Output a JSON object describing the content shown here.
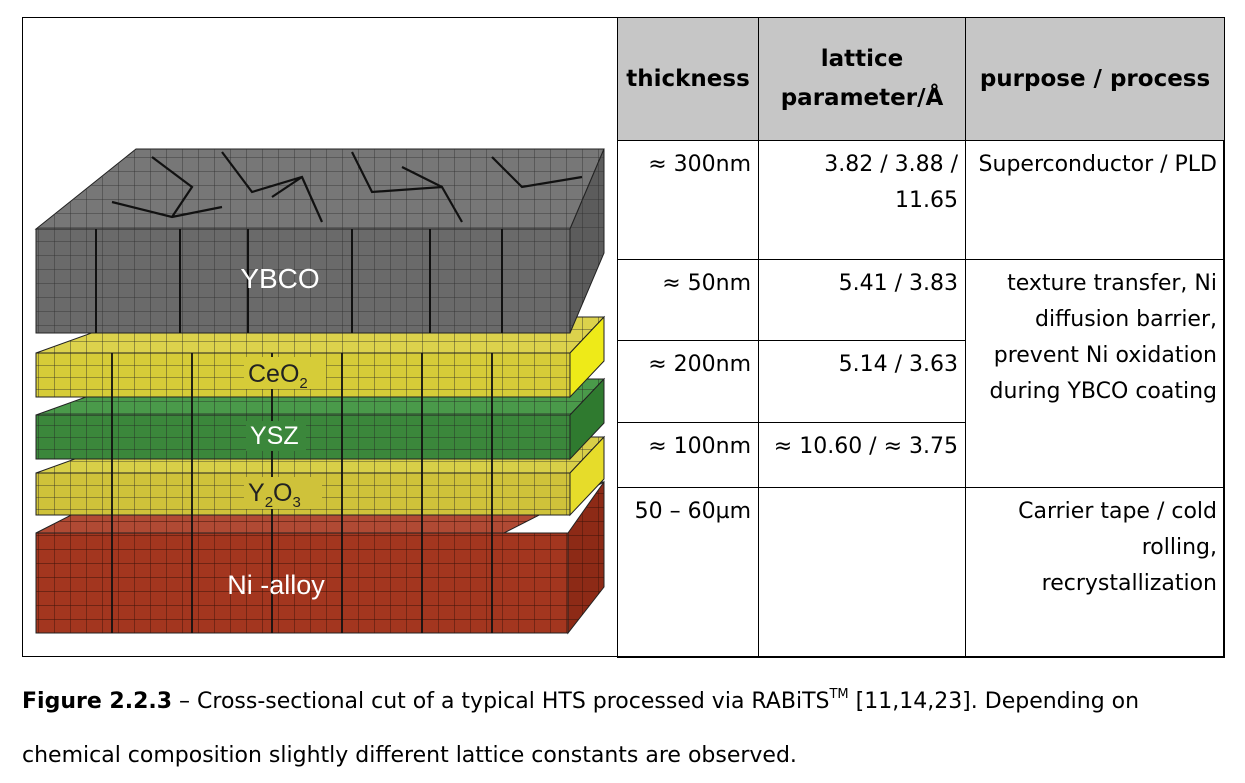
{
  "diagram": {
    "layers": [
      {
        "label": "YBCO",
        "color": "#6e6e6e"
      },
      {
        "label": "CeO",
        "sub": "2",
        "color": "#d6cc38"
      },
      {
        "label": "YSZ",
        "color": "#3a8a3a"
      },
      {
        "label": "Y",
        "sub": "2",
        "label2": "O",
        "sub2": "3",
        "color": "#d2c83a"
      },
      {
        "label": "Ni -alloy",
        "color": "#a83a26"
      }
    ]
  },
  "table": {
    "headers": [
      "thickness",
      "lattice parameter/Å",
      "purpose / process"
    ],
    "rows": [
      {
        "thickness": "≈ 300nm",
        "lattice": "3.82 / 3.88 / 11.65",
        "purpose": "Superconductor / PLD"
      },
      {
        "thickness": "≈ 50nm",
        "lattice": "5.41 / 3.83",
        "purpose": "texture transfer, Ni diffusion barrier, prevent Ni oxidation during YBCO coating"
      },
      {
        "thickness": "≈ 200nm",
        "lattice": "5.14 / 3.63"
      },
      {
        "thickness": "≈ 100nm",
        "lattice": "≈ 10.60 / ≈ 3.75"
      },
      {
        "thickness": "50 – 60µm",
        "lattice": "",
        "purpose": "Carrier tape / cold rolling, recrystallization"
      }
    ]
  },
  "caption": {
    "label": "Figure 2.2.3",
    "text_before_tm": " – Cross-sectional cut of a typical HTS processed via RABiTS",
    "tm": "TM",
    "text_after_tm": " [11,14,23]. Depending on chemical composition slightly different lattice constants are observed."
  }
}
